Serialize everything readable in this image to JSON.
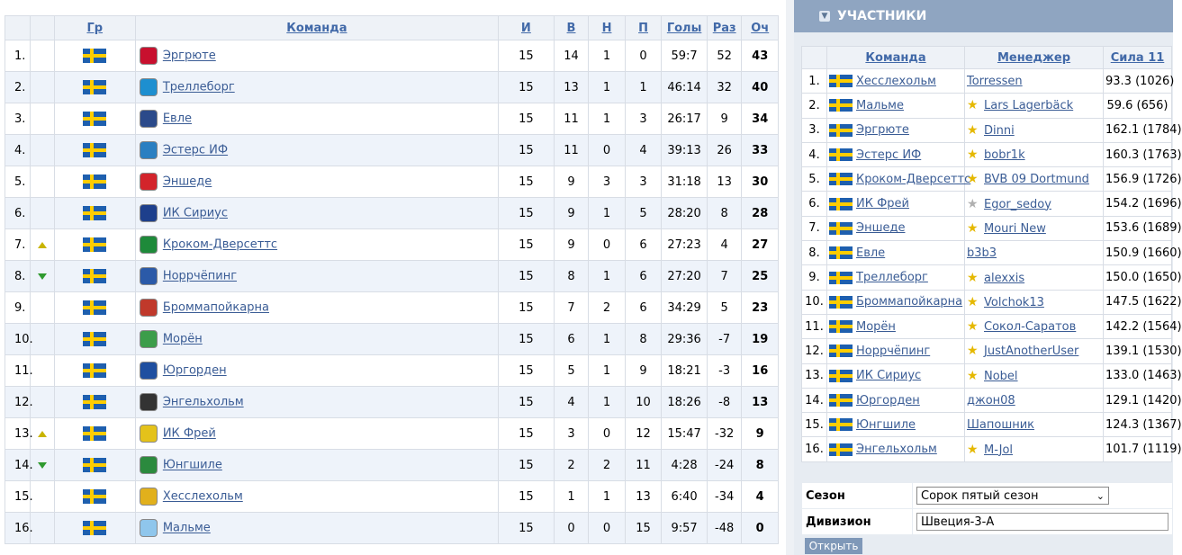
{
  "standings": {
    "headers": {
      "group": "Гр",
      "team": "Команда",
      "played": "И",
      "won": "В",
      "drawn": "Н",
      "lost": "П",
      "goals": "Голы",
      "diff": "Раз",
      "points": "Оч"
    },
    "rows": [
      {
        "pos": "1.",
        "move": "",
        "team": "Эргрюте",
        "crest_color": "#c8102e",
        "played": "15",
        "won": "14",
        "drawn": "1",
        "lost": "0",
        "goals": "59:7",
        "diff": "52",
        "points": "43"
      },
      {
        "pos": "2.",
        "move": "",
        "team": "Треллеборг",
        "crest_color": "#1d8fd0",
        "played": "15",
        "won": "13",
        "drawn": "1",
        "lost": "1",
        "goals": "46:14",
        "diff": "32",
        "points": "40"
      },
      {
        "pos": "3.",
        "move": "",
        "team": "Евле",
        "crest_color": "#2b4a8a",
        "played": "15",
        "won": "11",
        "drawn": "1",
        "lost": "3",
        "goals": "26:17",
        "diff": "9",
        "points": "34"
      },
      {
        "pos": "4.",
        "move": "",
        "team": "Эстерс ИФ",
        "crest_color": "#2a7fc1",
        "played": "15",
        "won": "11",
        "drawn": "0",
        "lost": "4",
        "goals": "39:13",
        "diff": "26",
        "points": "33"
      },
      {
        "pos": "5.",
        "move": "",
        "team": "Эншеде",
        "crest_color": "#d3242b",
        "played": "15",
        "won": "9",
        "drawn": "3",
        "lost": "3",
        "goals": "31:18",
        "diff": "13",
        "points": "30"
      },
      {
        "pos": "6.",
        "move": "",
        "team": "ИК Сириус",
        "crest_color": "#1d3f8c",
        "played": "15",
        "won": "9",
        "drawn": "1",
        "lost": "5",
        "goals": "28:20",
        "diff": "8",
        "points": "28"
      },
      {
        "pos": "7.",
        "move": "up",
        "team": "Кроком-Дверсеттс",
        "crest_color": "#1e8a3a",
        "played": "15",
        "won": "9",
        "drawn": "0",
        "lost": "6",
        "goals": "27:23",
        "diff": "4",
        "points": "27"
      },
      {
        "pos": "8.",
        "move": "down",
        "team": "Норрчёпинг",
        "crest_color": "#2b5aa8",
        "played": "15",
        "won": "8",
        "drawn": "1",
        "lost": "6",
        "goals": "27:20",
        "diff": "7",
        "points": "25"
      },
      {
        "pos": "9.",
        "move": "",
        "team": "Броммапойкарна",
        "crest_color": "#c0392b",
        "played": "15",
        "won": "7",
        "drawn": "2",
        "lost": "6",
        "goals": "34:29",
        "diff": "5",
        "points": "23"
      },
      {
        "pos": "10.",
        "move": "",
        "team": "Морён",
        "crest_color": "#3c9d4a",
        "played": "15",
        "won": "6",
        "drawn": "1",
        "lost": "8",
        "goals": "29:36",
        "diff": "-7",
        "points": "19"
      },
      {
        "pos": "11.",
        "move": "",
        "team": "Юргорден",
        "crest_color": "#1f4fa0",
        "played": "15",
        "won": "5",
        "drawn": "1",
        "lost": "9",
        "goals": "18:21",
        "diff": "-3",
        "points": "16"
      },
      {
        "pos": "12.",
        "move": "",
        "team": "Энгельхольм",
        "crest_color": "#333333",
        "played": "15",
        "won": "4",
        "drawn": "1",
        "lost": "10",
        "goals": "18:26",
        "diff": "-8",
        "points": "13"
      },
      {
        "pos": "13.",
        "move": "up",
        "team": "ИК Фрей",
        "crest_color": "#e4c21a",
        "played": "15",
        "won": "3",
        "drawn": "0",
        "lost": "12",
        "goals": "15:47",
        "diff": "-32",
        "points": "9"
      },
      {
        "pos": "14.",
        "move": "down",
        "team": "Юнгшиле",
        "crest_color": "#2b8a3e",
        "played": "15",
        "won": "2",
        "drawn": "2",
        "lost": "11",
        "goals": "4:28",
        "diff": "-24",
        "points": "8"
      },
      {
        "pos": "15.",
        "move": "",
        "team": "Хесслехольм",
        "crest_color": "#e1b01c",
        "played": "15",
        "won": "1",
        "drawn": "1",
        "lost": "13",
        "goals": "6:40",
        "diff": "-34",
        "points": "4"
      },
      {
        "pos": "16.",
        "move": "",
        "team": "Мальме",
        "crest_color": "#8fc6ec",
        "played": "15",
        "won": "0",
        "drawn": "0",
        "lost": "15",
        "goals": "9:57",
        "diff": "-48",
        "points": "0"
      }
    ]
  },
  "panel": {
    "title": "УЧАСТНИКИ",
    "headers": {
      "team": "Команда",
      "manager": "Менеджер",
      "strength": "Сила 11"
    },
    "rows": [
      {
        "pos": "1.",
        "team": "Хесслехольм",
        "star": "none",
        "manager": "Torressen",
        "strength": "93.3 (1026)"
      },
      {
        "pos": "2.",
        "team": "Мальме",
        "star": "gold",
        "manager": "Lars Lagerbäck",
        "strength": "59.6 (656)"
      },
      {
        "pos": "3.",
        "team": "Эргрюте",
        "star": "gold",
        "manager": "Dinni",
        "strength": "162.1 (1784)"
      },
      {
        "pos": "4.",
        "team": "Эстерс ИФ",
        "star": "gold",
        "manager": "bobr1k",
        "strength": "160.3 (1763)"
      },
      {
        "pos": "5.",
        "team": "Кроком-Дверсеттс",
        "star": "gold",
        "manager": "BVB 09 Dortmund",
        "strength": "156.9 (1726)"
      },
      {
        "pos": "6.",
        "team": "ИК Фрей",
        "star": "grey",
        "manager": "Egor_sedoy",
        "strength": "154.2 (1696)"
      },
      {
        "pos": "7.",
        "team": "Эншеде",
        "star": "gold",
        "manager": "Mouri New",
        "strength": "153.6 (1689)"
      },
      {
        "pos": "8.",
        "team": "Евле",
        "star": "none",
        "manager": "b3b3",
        "strength": "150.9 (1660)"
      },
      {
        "pos": "9.",
        "team": "Треллеборг",
        "star": "gold",
        "manager": "alexxis",
        "strength": "150.0 (1650)"
      },
      {
        "pos": "10.",
        "team": "Броммапойкарна",
        "star": "gold",
        "manager": "Volchok13",
        "strength": "147.5 (1622)"
      },
      {
        "pos": "11.",
        "team": "Морён",
        "star": "gold",
        "manager": "Сокол-Саратов",
        "strength": "142.2 (1564)"
      },
      {
        "pos": "12.",
        "team": "Норрчёпинг",
        "star": "gold",
        "manager": "JustAnotherUser",
        "strength": "139.1 (1530)"
      },
      {
        "pos": "13.",
        "team": "ИК Сириус",
        "star": "gold",
        "manager": "Nobel",
        "strength": "133.0 (1463)"
      },
      {
        "pos": "14.",
        "team": "Юргорден",
        "star": "none",
        "manager": "джон08",
        "strength": "129.1 (1420)"
      },
      {
        "pos": "15.",
        "team": "Юнгшиле",
        "star": "none",
        "manager": "Шапошник",
        "strength": "124.3 (1367)"
      },
      {
        "pos": "16.",
        "team": "Энгельхольм",
        "star": "gold",
        "manager": "M-Jol",
        "strength": "101.7 (1119)"
      }
    ],
    "filter": {
      "season_label": "Сезон",
      "season_value": "Сорок пятый сезон",
      "division_label": "Дивизион",
      "division_value": "Швеция-3-А",
      "open_label": "Открыть"
    }
  }
}
